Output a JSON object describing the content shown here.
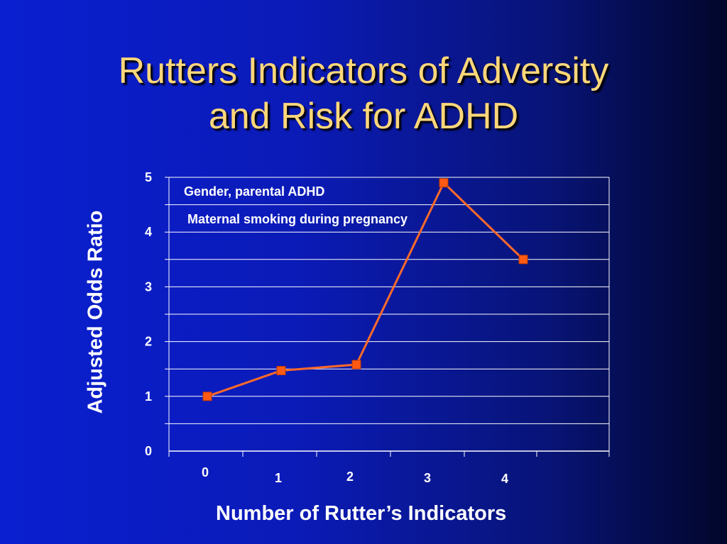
{
  "title_lines": [
    "Rutters Indicators of Adversity",
    "and Risk for ADHD"
  ],
  "colors": {
    "title": "#ffd77a",
    "line": "#ff6a2a",
    "marker": "#ff5a14",
    "grid": "#ffffff",
    "text": "#ffffff"
  },
  "chart_data": {
    "type": "line",
    "xlabel": "Number of Rutter’s Indicators",
    "ylabel": "Adjusted Odds Ratio",
    "ylim": [
      0,
      5
    ],
    "x_tick_labels": [
      "0",
      "1",
      "2",
      "3",
      "4"
    ],
    "y_tick_labels": [
      "0",
      "1",
      "2",
      "3",
      "4",
      "5"
    ],
    "grid": true,
    "series": [
      {
        "values": [
          1.0,
          1.47,
          1.58,
          4.9,
          3.5
        ]
      }
    ],
    "annotations": [
      {
        "text": "Gender, parental ADHD"
      },
      {
        "text": "Maternal smoking during pregnancy"
      }
    ]
  }
}
